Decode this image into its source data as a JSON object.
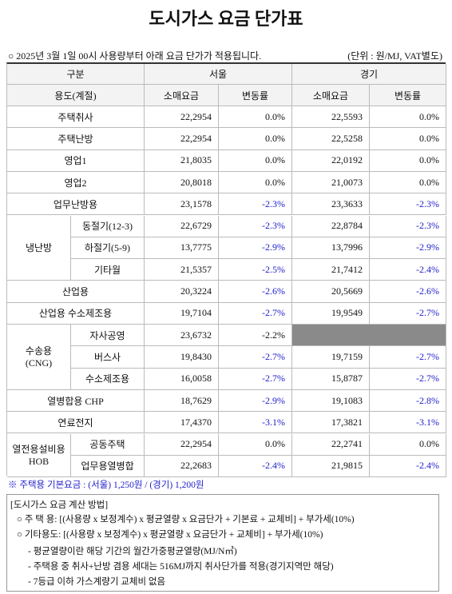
{
  "header": {
    "title": "도시가스 요금 단가표",
    "notice": "○ 2025년 3월 1일 00시 사용량부터 아래 요금 단가가 적용됩니다.",
    "unit": "(단위 : 원/MJ, VAT별도)"
  },
  "table": {
    "head": {
      "category": "구분",
      "usage": "용도(계절)",
      "regions": [
        "서울",
        "경기"
      ],
      "columns": [
        "소매요금",
        "변동률",
        "소매요금",
        "변동률"
      ]
    },
    "items": [
      {
        "label": "주택취사",
        "cells": [
          "22,2954",
          "0.0%",
          "22,5593",
          "0.0%"
        ]
      },
      {
        "label": "주택난방",
        "cells": [
          "22,2954",
          "0.0%",
          "22,5258",
          "0.0%"
        ]
      },
      {
        "label": "영업1",
        "cells": [
          "21,8035",
          "0.0%",
          "22,0192",
          "0.0%"
        ]
      },
      {
        "label": "영업2",
        "cells": [
          "20,8018",
          "0.0%",
          "21,0073",
          "0.0%"
        ]
      },
      {
        "label": "업무난방용",
        "cells": [
          "23,1578",
          "-2.3%",
          "23,3633",
          "-2.3%"
        ]
      },
      {
        "label": "냉난방",
        "rows": [
          {
            "label": "동절기(12-3)",
            "cells": [
              "22,6729",
              "-2.3%",
              "22,8784",
              "-2.3%"
            ]
          },
          {
            "label": "하절기(5-9)",
            "cells": [
              "13,7775",
              "-2.9%",
              "13,7996",
              "-2.9%"
            ]
          },
          {
            "label": "기타월",
            "cells": [
              "21,5357",
              "-2.5%",
              "21,7412",
              "-2.4%"
            ]
          }
        ]
      },
      {
        "label": "산업용",
        "cells": [
          "20,3224",
          "-2.6%",
          "20,5669",
          "-2.6%"
        ]
      },
      {
        "label": "산업용 수소제조용",
        "cells": [
          "19,7104",
          "-2.7%",
          "19,9549",
          "-2.7%"
        ]
      },
      {
        "label": "수송용\n(CNG)",
        "rows": [
          {
            "label": "자사공영",
            "cells": [
              "23,6732",
              "-2.2%",
              null,
              null
            ]
          },
          {
            "label": "버스사",
            "cells": [
              "19,8430",
              "-2.7%",
              "19,7159",
              "-2.7%"
            ]
          },
          {
            "label": "수소제조용",
            "cells": [
              "16,0058",
              "-2.7%",
              "15,8787",
              "-2.7%"
            ]
          }
        ]
      },
      {
        "label": "열병합용 CHP",
        "cells": [
          "18,7629",
          "-2.9%",
          "19,1083",
          "-2.8%"
        ]
      },
      {
        "label": "연료전지",
        "cells": [
          "17,4370",
          "-3.1%",
          "17,3821",
          "-3.1%"
        ]
      },
      {
        "label": "열전용설비용\nHOB",
        "rows": [
          {
            "label": "공동주택",
            "cells": [
              "22,2954",
              "0.0%",
              "22,2741",
              "0.0%"
            ]
          },
          {
            "label": "업무용열병합",
            "cells": [
              "22,2683",
              "-2.4%",
              "21,9815",
              "-2.4%"
            ]
          }
        ]
      }
    ]
  },
  "footnote": "※ 주택용 기본요금 : (서울) 1,250원 / (경기) 1,200원",
  "method": {
    "title": "[도시가스 요금 계산 방법]",
    "lines": [
      "○ 주 택 용: [(사용량 x 보정계수) x 평균열량 x 요금단가 + 기본료 + 교체비] + 부가세(10%)",
      "○ 기타용도: [(사용량 x 보정계수) x 평균열량 x 요금단가 + 교체비] + 부가세(10%)",
      "- 평균열량이란 해당 기간의 월간가중평균열량(MJ/N㎥)",
      "- 주택용 중 취사+난방 겸용 세대는 516MJ까지 취사단가를 적용(경기지역만 해당)",
      "- 7등급 이하 가스계량기 교체비 없음"
    ]
  }
}
